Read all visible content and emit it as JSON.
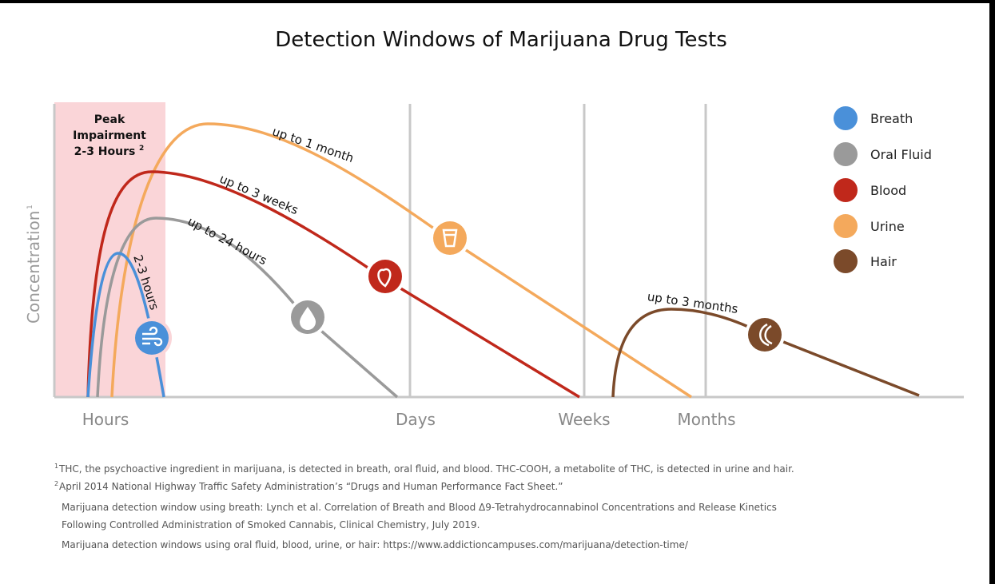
{
  "title": "Detection Windows of Marijuana Drug Tests",
  "y_axis": {
    "label": "Concentration",
    "note": "1"
  },
  "x_axis": [
    "Hours",
    "Days",
    "Weeks",
    "Months"
  ],
  "peak": {
    "lines": [
      "Peak",
      "Impairment",
      "2-3 Hours"
    ],
    "note": "2"
  },
  "curves": [
    {
      "name": "Breath",
      "label": "2-3 hours"
    },
    {
      "name": "Oral Fluid",
      "label": "up to 24 hours"
    },
    {
      "name": "Blood",
      "label": "up to 3 weeks"
    },
    {
      "name": "Urine",
      "label": "up to 1 month"
    },
    {
      "name": "Hair",
      "label": "up to 3 months"
    }
  ],
  "footnotes": [
    {
      "marker": "1",
      "lines": [
        "THC, the psychoactive ingredient in marijuana, is detected in breath, oral fluid, and blood. THC-COOH, a metabolite of THC, is detected in urine and hair."
      ]
    },
    {
      "marker": "2",
      "lines": [
        "April 2014 National Highway Traffic Safety Administration’s “Drugs and Human Performance Fact Sheet.”"
      ]
    },
    {
      "lines": [
        "Marijuana detection window using breath: Lynch et al. Correlation of Breath and Blood Δ9-Tetrahydrocannabinol Concentrations and Release Kinetics",
        "Following Controlled Administration of Smoked Cannabis, Clinical Chemistry, July 2019."
      ]
    },
    {
      "lines": [
        "Marijuana detection windows using oral fluid, blood, urine, or hair: https://www.addictioncampuses.com/marijuana/detection-time/"
      ]
    }
  ]
}
